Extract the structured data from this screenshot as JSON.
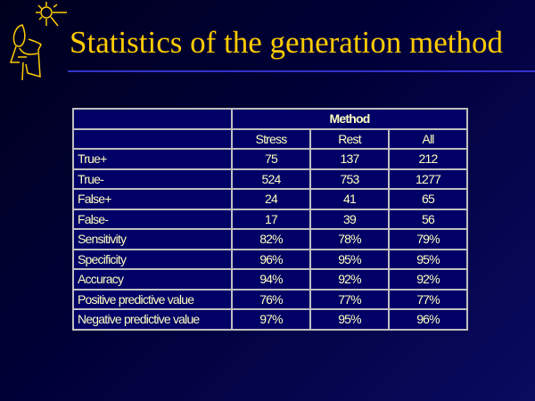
{
  "slide": {
    "title": "Statistics of the generation method"
  },
  "table": {
    "group_header": "Method",
    "columns": [
      "Stress",
      "Rest",
      "All"
    ],
    "rows": [
      {
        "label": "True+",
        "values": [
          "75",
          "137",
          "212"
        ]
      },
      {
        "label": "True-",
        "values": [
          "524",
          "753",
          "1277"
        ]
      },
      {
        "label": "False+",
        "values": [
          "24",
          "41",
          "65"
        ]
      },
      {
        "label": "False-",
        "values": [
          "17",
          "39",
          "56"
        ]
      },
      {
        "label": "Sensitivity",
        "values": [
          "82%",
          "78%",
          "79%"
        ]
      },
      {
        "label": "Specificity",
        "values": [
          "96%",
          "95%",
          "95%"
        ]
      },
      {
        "label": "Accuracy",
        "values": [
          "94%",
          "92%",
          "92%"
        ]
      },
      {
        "label": "Positive predictive value",
        "values": [
          "76%",
          "77%",
          "77%"
        ]
      },
      {
        "label": "Negative predictive value",
        "values": [
          "97%",
          "95%",
          "96%"
        ]
      }
    ]
  },
  "colors": {
    "title": "#ffcc00",
    "text": "#ffffc0",
    "cell_bg": "#000066",
    "rule": "#3333cc"
  }
}
